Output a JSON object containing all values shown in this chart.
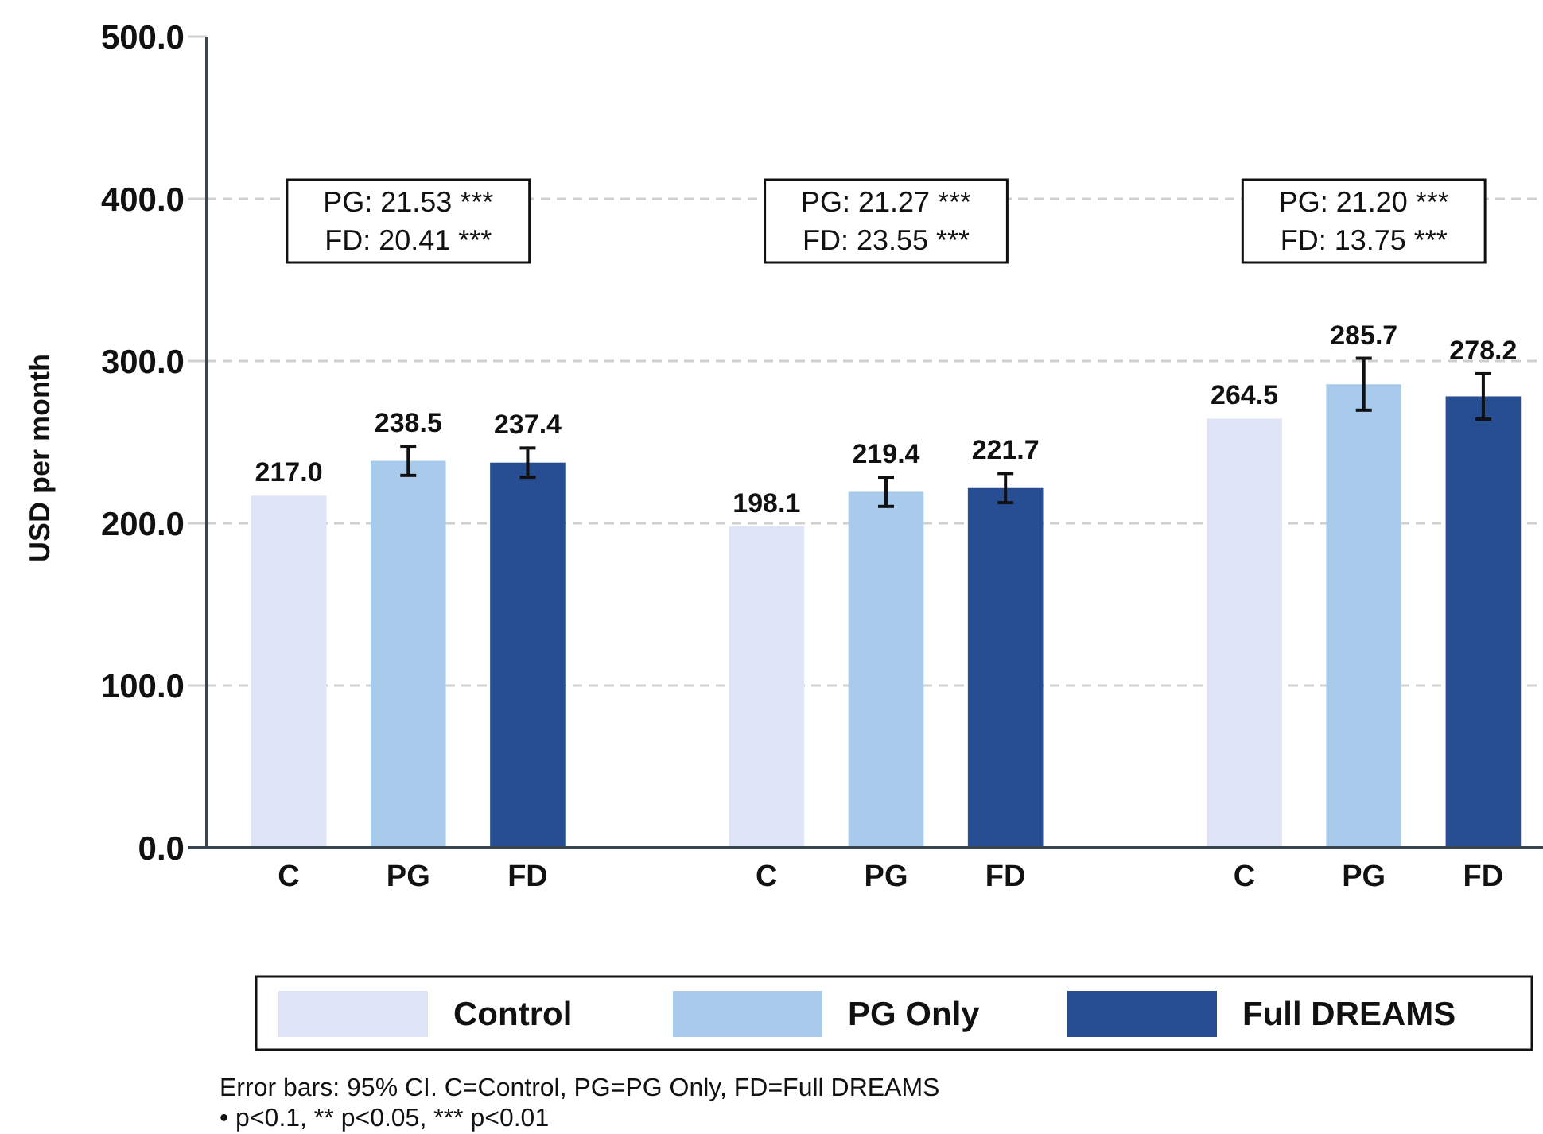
{
  "chart_data": {
    "type": "bar",
    "ylabel": "USD per month",
    "categories": [
      "C",
      "PG",
      "FD",
      null,
      "C",
      "PG",
      "FD",
      null,
      "C",
      "PG",
      "FD"
    ],
    "series": [
      {
        "name": "Control",
        "color": "#dee4f5",
        "values": [
          217.0,
          null,
          null,
          null,
          198.1,
          null,
          null,
          null,
          264.5,
          null,
          null
        ],
        "value_labels": [
          "217.0",
          null,
          null,
          null,
          "198.1",
          null,
          null,
          null,
          "264.5",
          null,
          null
        ]
      },
      {
        "name": "PG Only",
        "color": "#a9cbeb",
        "values": [
          null,
          238.5,
          null,
          null,
          null,
          219.4,
          null,
          null,
          null,
          285.7,
          null
        ],
        "errors": [
          null,
          9,
          null,
          null,
          null,
          9,
          null,
          null,
          null,
          16,
          null
        ],
        "value_labels": [
          null,
          "238.5",
          null,
          null,
          null,
          "219.4",
          null,
          null,
          null,
          "285.7",
          null
        ]
      },
      {
        "name": "Full DREAMS",
        "color": "#274e93",
        "values": [
          null,
          null,
          237.4,
          null,
          null,
          null,
          221.7,
          null,
          null,
          null,
          278.2
        ],
        "errors": [
          null,
          null,
          9,
          null,
          null,
          null,
          9,
          null,
          null,
          null,
          14
        ],
        "value_labels": [
          null,
          null,
          "237.4",
          null,
          null,
          null,
          "221.7",
          null,
          null,
          null,
          "278.2"
        ]
      }
    ],
    "ylim": [
      0,
      500
    ],
    "yticks": [
      {
        "value": 0,
        "label": "0.0"
      },
      {
        "value": 100,
        "label": "100.0"
      },
      {
        "value": 200,
        "label": "200.0"
      },
      {
        "value": 300,
        "label": "300.0"
      },
      {
        "value": 400,
        "label": "400.0"
      },
      {
        "value": 500,
        "label": "500.0"
      }
    ],
    "grid": "y",
    "legend": "bottom",
    "annotations": [
      "PG: 21.53 ***\nFD: 20.41 ***",
      "PG: 21.27 ***\nFD: 23.55 ***",
      "PG: 21.20 ***\nFD: 13.75 ***",
      "Error bars: 95% CI. C=Control, PG=PG Only, FD=Full DREAMS",
      "• p<0.1, ** p<0.05, *** p<0.01"
    ]
  }
}
